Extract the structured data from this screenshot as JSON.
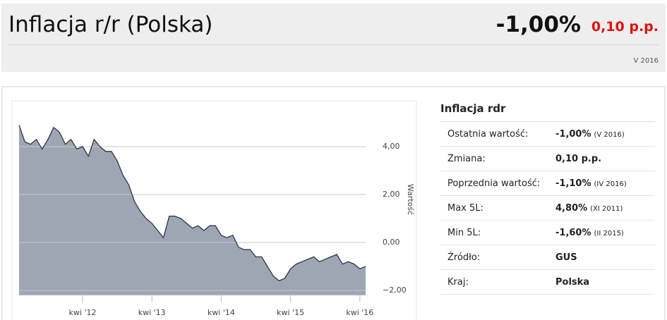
{
  "header": {
    "title": "Inflacja r/r (Polska)",
    "value": "-1,00%",
    "change": "0,10 p.p.",
    "period": "V 2016"
  },
  "chart_data": {
    "type": "area",
    "y_label": "Wartość",
    "color": "#9ea6b4",
    "line_color": "#2c3442",
    "grid": true,
    "x": [
      "2011-05",
      "2011-06",
      "2011-07",
      "2011-08",
      "2011-09",
      "2011-10",
      "2011-11",
      "2011-12",
      "2012-01",
      "2012-02",
      "2012-03",
      "2012-04",
      "2012-05",
      "2012-06",
      "2012-07",
      "2012-08",
      "2012-09",
      "2012-10",
      "2012-11",
      "2012-12",
      "2013-01",
      "2013-02",
      "2013-03",
      "2013-04",
      "2013-05",
      "2013-06",
      "2013-07",
      "2013-08",
      "2013-09",
      "2013-10",
      "2013-11",
      "2013-12",
      "2014-01",
      "2014-02",
      "2014-03",
      "2014-04",
      "2014-05",
      "2014-06",
      "2014-07",
      "2014-08",
      "2014-09",
      "2014-10",
      "2014-11",
      "2014-12",
      "2015-01",
      "2015-02",
      "2015-03",
      "2015-04",
      "2015-05",
      "2015-06",
      "2015-07",
      "2015-08",
      "2015-09",
      "2015-10",
      "2015-11",
      "2015-12",
      "2016-01",
      "2016-02",
      "2016-03",
      "2016-04",
      "2016-05"
    ],
    "values": [
      4.9,
      4.2,
      4.1,
      4.3,
      3.9,
      4.3,
      4.8,
      4.6,
      4.1,
      4.3,
      3.9,
      4.0,
      3.6,
      4.3,
      4.0,
      3.8,
      3.8,
      3.4,
      2.8,
      2.4,
      1.7,
      1.3,
      1.0,
      0.8,
      0.5,
      0.2,
      1.1,
      1.1,
      1.0,
      0.8,
      0.6,
      0.7,
      0.5,
      0.7,
      0.7,
      0.3,
      0.2,
      0.3,
      -0.2,
      -0.3,
      -0.3,
      -0.6,
      -0.6,
      -1.0,
      -1.4,
      -1.6,
      -1.5,
      -1.1,
      -0.9,
      -0.8,
      -0.7,
      -0.6,
      -0.8,
      -0.7,
      -0.6,
      -0.5,
      -0.9,
      -0.8,
      -0.9,
      -1.1,
      -1.0
    ],
    "ylim": [
      -2.2,
      5.5
    ],
    "yticks": [
      {
        "value": -2,
        "label": "−2,00"
      },
      {
        "value": 0,
        "label": "0,00"
      },
      {
        "value": 2,
        "label": "2,00"
      },
      {
        "value": 4,
        "label": "4,00"
      }
    ],
    "xticks": [
      {
        "value": "2012-04",
        "label": "kwi '12"
      },
      {
        "value": "2013-04",
        "label": "kwi '13"
      },
      {
        "value": "2014-04",
        "label": "kwi '14"
      },
      {
        "value": "2015-04",
        "label": "kwi '15"
      },
      {
        "value": "2016-04",
        "label": "kwi '16"
      }
    ]
  },
  "table": {
    "title": "Inflacja rdr",
    "rows": [
      [
        "Ostatnia wartość:",
        "-1,00%",
        "(V 2016)"
      ],
      [
        "Zmiana:",
        "0,10 p.p."
      ],
      [
        "Poprzednia wartość:",
        "-1,10%",
        "(IV 2016)"
      ],
      [
        "Max 5L:",
        "4,80%",
        "(XI 2011)"
      ],
      [
        "Min 5L:",
        "-1,60%",
        "(II 2015)"
      ],
      [
        "Źródło:",
        "GUS"
      ],
      [
        "Kraj:",
        "Polska"
      ]
    ]
  }
}
